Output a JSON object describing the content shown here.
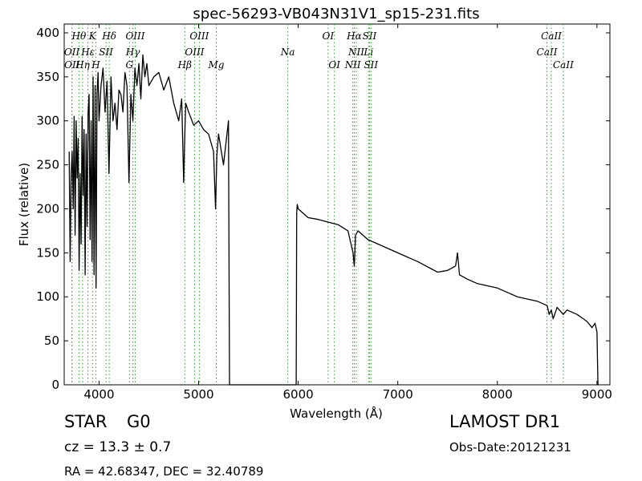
{
  "chart_data": {
    "type": "line",
    "title": "spec-56293-VB043N31V1_sp15-231.fits",
    "xlabel": "Wavelength (Å)",
    "ylabel": "Flux (relative)",
    "xlim": [
      3650,
      9130
    ],
    "ylim": [
      0,
      410
    ],
    "xticks": [
      4000,
      5000,
      6000,
      7000,
      8000,
      9000
    ],
    "yticks": [
      0,
      50,
      100,
      150,
      200,
      250,
      300,
      350,
      400
    ],
    "grid": false,
    "line_color": "#000000",
    "marker_color": "#2ca02c",
    "series": [
      {
        "x": [
          3700,
          3710,
          3720,
          3730,
          3740,
          3750,
          3760,
          3770,
          3780,
          3790,
          3800,
          3810,
          3820,
          3830,
          3840,
          3850,
          3860,
          3870,
          3880,
          3890,
          3900,
          3910,
          3920,
          3930,
          3940,
          3950,
          3960,
          3970,
          3980,
          3990,
          4000,
          4020,
          4040,
          4060,
          4080,
          4100,
          4120,
          4140,
          4160,
          4180,
          4200,
          4220,
          4240,
          4260,
          4280,
          4300,
          4320,
          4340,
          4360,
          4380,
          4400,
          4420,
          4440,
          4460,
          4480,
          4500,
          4550,
          4600,
          4650,
          4700,
          4750,
          4800,
          4830,
          4850,
          4861,
          4870,
          4900,
          4950,
          5000,
          5050,
          5100,
          5150,
          5170,
          5183,
          5200,
          5250,
          5300,
          5310,
          5320,
          5330,
          5500,
          5800,
          5950,
          5980,
          5985,
          5990,
          6000,
          6050,
          6100,
          6200,
          6300,
          6400,
          6500,
          6550,
          6563,
          6575,
          6600,
          6700,
          6800,
          7000,
          7200,
          7400,
          7500,
          7580,
          7600,
          7620,
          7700,
          7800,
          8000,
          8200,
          8400,
          8500,
          8520,
          8542,
          8560,
          8600,
          8662,
          8700,
          8800,
          8900,
          8950,
          8980,
          9000,
          9010,
          9020
        ],
        "y": [
          265,
          140,
          240,
          265,
          200,
          305,
          170,
          300,
          235,
          280,
          130,
          240,
          160,
          305,
          215,
          290,
          125,
          285,
          180,
          310,
          330,
          165,
          300,
          140,
          350,
          125,
          340,
          110,
          330,
          355,
          300,
          340,
          360,
          310,
          345,
          240,
          350,
          300,
          320,
          290,
          335,
          330,
          310,
          355,
          340,
          230,
          330,
          300,
          360,
          340,
          365,
          325,
          375,
          350,
          365,
          340,
          350,
          355,
          335,
          350,
          320,
          300,
          325,
          230,
          285,
          320,
          310,
          295,
          300,
          290,
          285,
          265,
          200,
          260,
          285,
          250,
          300,
          0,
          0,
          0,
          0,
          0,
          0,
          0,
          195,
          205,
          200,
          195,
          190,
          188,
          185,
          182,
          175,
          150,
          135,
          170,
          175,
          165,
          160,
          150,
          140,
          128,
          130,
          135,
          150,
          125,
          120,
          115,
          110,
          100,
          95,
          90,
          80,
          85,
          75,
          88,
          80,
          85,
          80,
          72,
          65,
          70,
          60,
          0,
          0
        ]
      }
    ],
    "lines": [
      {
        "name": "OII",
        "wavelength": 3727,
        "level": 2
      },
      {
        "name": "OII",
        "wavelength": 3729,
        "level": 3
      },
      {
        "name": "Hθ",
        "wavelength": 3798,
        "level": 1
      },
      {
        "name": "Hη",
        "wavelength": 3835,
        "level": 3
      },
      {
        "name": "Hε",
        "wavelength": 3889,
        "level": 2
      },
      {
        "name": "K",
        "wavelength": 3934,
        "level": 1
      },
      {
        "name": "H",
        "wavelength": 3968,
        "level": 3
      },
      {
        "name": "SII",
        "wavelength": 4070,
        "level": 2
      },
      {
        "name": "Hδ",
        "wavelength": 4102,
        "level": 1
      },
      {
        "name": "G",
        "wavelength": 4305,
        "level": 3
      },
      {
        "name": "Hγ",
        "wavelength": 4340,
        "level": 2
      },
      {
        "name": "OIII",
        "wavelength": 4363,
        "level": 1
      },
      {
        "name": "Hβ",
        "wavelength": 4861,
        "level": 3
      },
      {
        "name": "OIII",
        "wavelength": 4959,
        "level": 2
      },
      {
        "name": "OIII",
        "wavelength": 5007,
        "level": 1
      },
      {
        "name": "Mg",
        "wavelength": 5177,
        "level": 3
      },
      {
        "name": "Na",
        "wavelength": 5895,
        "level": 2
      },
      {
        "name": "OI",
        "wavelength": 6300,
        "level": 1
      },
      {
        "name": "OI",
        "wavelength": 6363,
        "level": 3
      },
      {
        "name": "NII",
        "wavelength": 6548,
        "level": 3
      },
      {
        "name": "NII",
        "wavelength": 6583,
        "level": 2
      },
      {
        "name": "Hα",
        "wavelength": 6563,
        "level": 1
      },
      {
        "name": "Li",
        "wavelength": 6707,
        "level": 2
      },
      {
        "name": "SII",
        "wavelength": 6716,
        "level": 1
      },
      {
        "name": "SII",
        "wavelength": 6731,
        "level": 3
      },
      {
        "name": "CaII",
        "wavelength": 8498,
        "level": 2
      },
      {
        "name": "CaII",
        "wavelength": 8542,
        "level": 1
      },
      {
        "name": "CaII",
        "wavelength": 8662,
        "level": 3
      }
    ]
  },
  "info": {
    "class_label": "STAR",
    "subclass": "G0",
    "survey": "LAMOST DR1",
    "redshift": "cz = 13.3 ± 0.7",
    "obs_date": "Obs-Date:20121231",
    "coords": "RA = 42.68347, DEC = 32.40789"
  }
}
